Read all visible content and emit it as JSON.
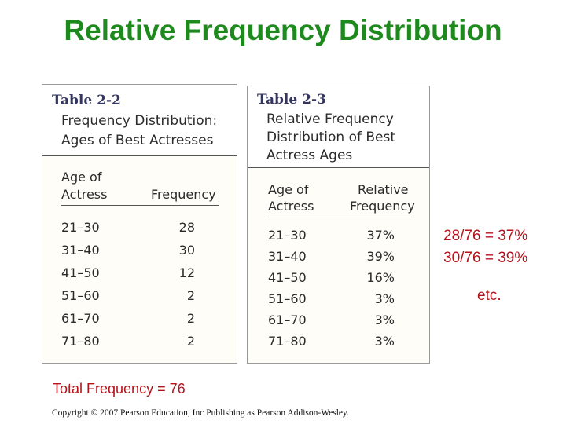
{
  "slide": {
    "title": "Relative Frequency Distribution",
    "total_note": "Total Frequency = 76",
    "calc_lines": [
      "28/76 = 37%",
      "30/76 = 39%"
    ],
    "etc": "etc.",
    "copyright": "Copyright © 2007 Pearson Education, Inc Publishing as Pearson Addison-Wesley."
  },
  "table22": {
    "number": "Table 2-2",
    "caption": [
      "Frequency Distribution:",
      "Ages of Best Actresses"
    ],
    "col1_header": [
      "Age of",
      "Actress"
    ],
    "col2_header": "Frequency",
    "rows": [
      {
        "age": "21–30",
        "value": "28"
      },
      {
        "age": "31–40",
        "value": "30"
      },
      {
        "age": "41–50",
        "value": "12"
      },
      {
        "age": "51–60",
        "value": "2"
      },
      {
        "age": "61–70",
        "value": "2"
      },
      {
        "age": "71–80",
        "value": "2"
      }
    ]
  },
  "table23": {
    "number": "Table 2-3",
    "caption": [
      "Relative Frequency",
      "Distribution of Best",
      "Actress Ages"
    ],
    "col1_header": [
      "Age of",
      "Actress"
    ],
    "col2_header": [
      "Relative",
      "Frequency"
    ],
    "rows": [
      {
        "age": "21–30",
        "value": "37%"
      },
      {
        "age": "31–40",
        "value": "39%"
      },
      {
        "age": "41–50",
        "value": "16%"
      },
      {
        "age": "51–60",
        "value": "3%"
      },
      {
        "age": "61–70",
        "value": "3%"
      },
      {
        "age": "71–80",
        "value": "3%"
      }
    ]
  },
  "colors": {
    "title": "#1e8a1e",
    "note": "#b5121b",
    "table_number": "#34365f"
  }
}
